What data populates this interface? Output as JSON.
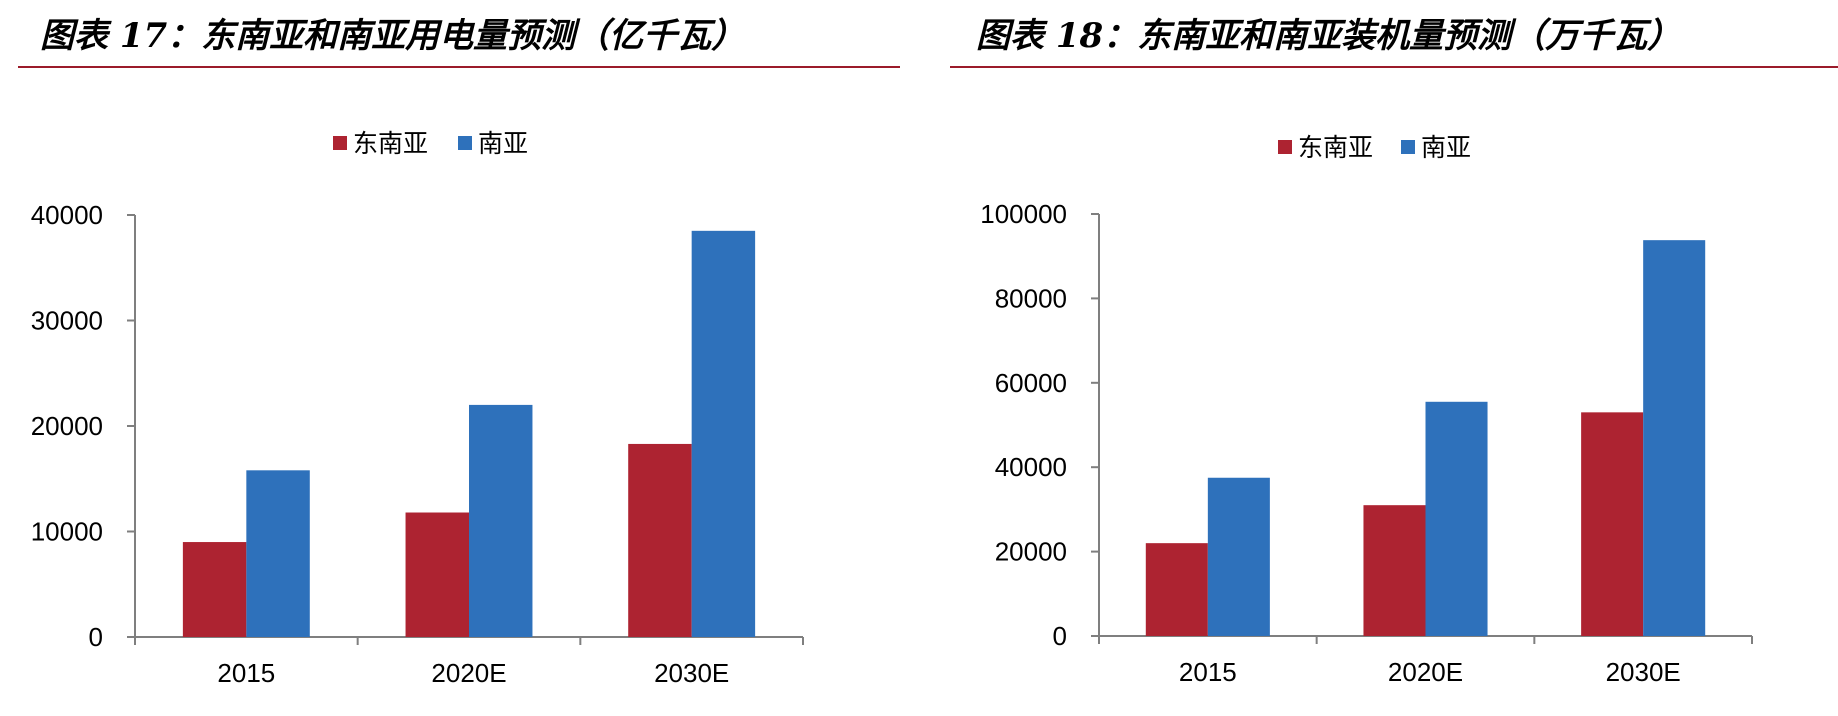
{
  "panels": [
    {
      "title": "图表 17：东南亚和南亚用电量预测（亿千瓦）"
    },
    {
      "title": "图表 18：东南亚和南亚装机量预测（万千瓦）"
    }
  ],
  "colors": {
    "southeast_asia": "#ad2331",
    "south_asia": "#2e71bb",
    "axis": "#7f7f7f",
    "rule": "#9b1b2a"
  },
  "chart_data": [
    {
      "type": "bar",
      "title": "",
      "categories": [
        "2015",
        "2020E",
        "2030E"
      ],
      "series": [
        {
          "name": "东南亚",
          "values": [
            9000,
            11800,
            18300
          ]
        },
        {
          "name": "南亚",
          "values": [
            15800,
            22000,
            38500
          ]
        }
      ],
      "ylim": [
        0,
        40000
      ],
      "yticks": [
        0,
        10000,
        20000,
        30000,
        40000
      ],
      "xlabel": "",
      "ylabel": "",
      "legend": "top-center",
      "grid": false
    },
    {
      "type": "bar",
      "title": "",
      "categories": [
        "2015",
        "2020E",
        "2030E"
      ],
      "series": [
        {
          "name": "东南亚",
          "values": [
            22000,
            31000,
            53000
          ]
        },
        {
          "name": "南亚",
          "values": [
            37500,
            55500,
            93800
          ]
        }
      ],
      "ylim": [
        0,
        100000
      ],
      "yticks": [
        0,
        20000,
        40000,
        60000,
        80000,
        100000
      ],
      "xlabel": "",
      "ylabel": "",
      "legend": "top-center",
      "grid": false
    }
  ]
}
